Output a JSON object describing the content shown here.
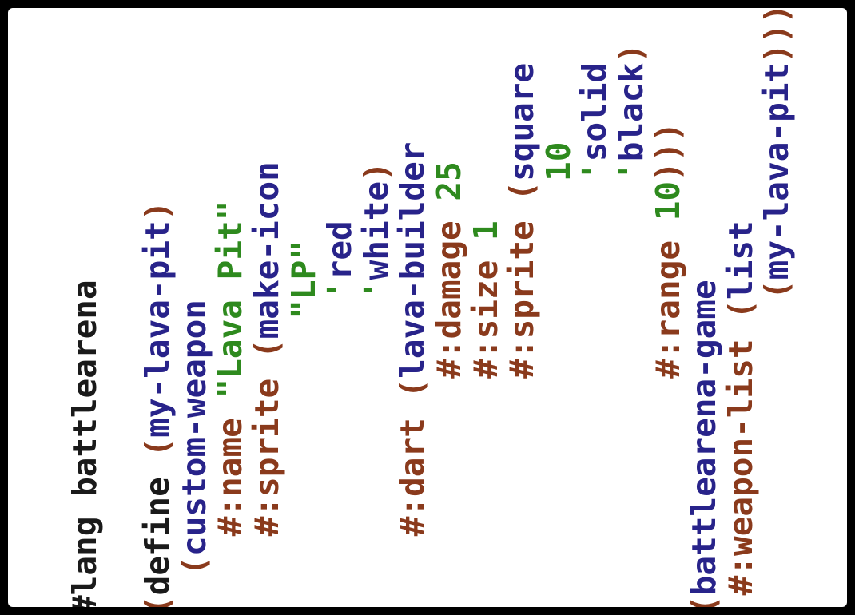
{
  "colors": {
    "background": "#000000",
    "editor_background": "#ffffff",
    "paren": "#8a3a1c",
    "keyword_text": "#1a1a1a",
    "identifier": "#28238a",
    "keyword_argument": "#8a3a1c",
    "literal": "#2e8a1e"
  },
  "code": {
    "lang_directive": "#lang battlearena",
    "define_kw": "define",
    "fn_name": "my-lava-pit",
    "custom_weapon": "custom-weapon",
    "name_kw": "#:name",
    "name_val": "\"Lava Pit\"",
    "sprite_kw": "#:sprite",
    "make_icon": "make-icon",
    "icon_text": "\"LP\"",
    "icon_color_1": "red",
    "icon_color_2": "white",
    "dart_kw": "#:dart",
    "lava_builder": "lava-builder",
    "damage_kw": "#:damage",
    "damage_val": "25",
    "size_kw": "#:size",
    "size_val": "1",
    "sprite_kw_2": "#:sprite",
    "square_fn": "square",
    "square_size": "10",
    "square_mode": "solid",
    "square_color": "black",
    "range_kw": "#:range",
    "range_val": "10",
    "battlearena_game": "battlearena-game",
    "weapon_list_kw": "#:weapon-list",
    "list_fn": "list",
    "list_item": "my-lava-pit"
  }
}
